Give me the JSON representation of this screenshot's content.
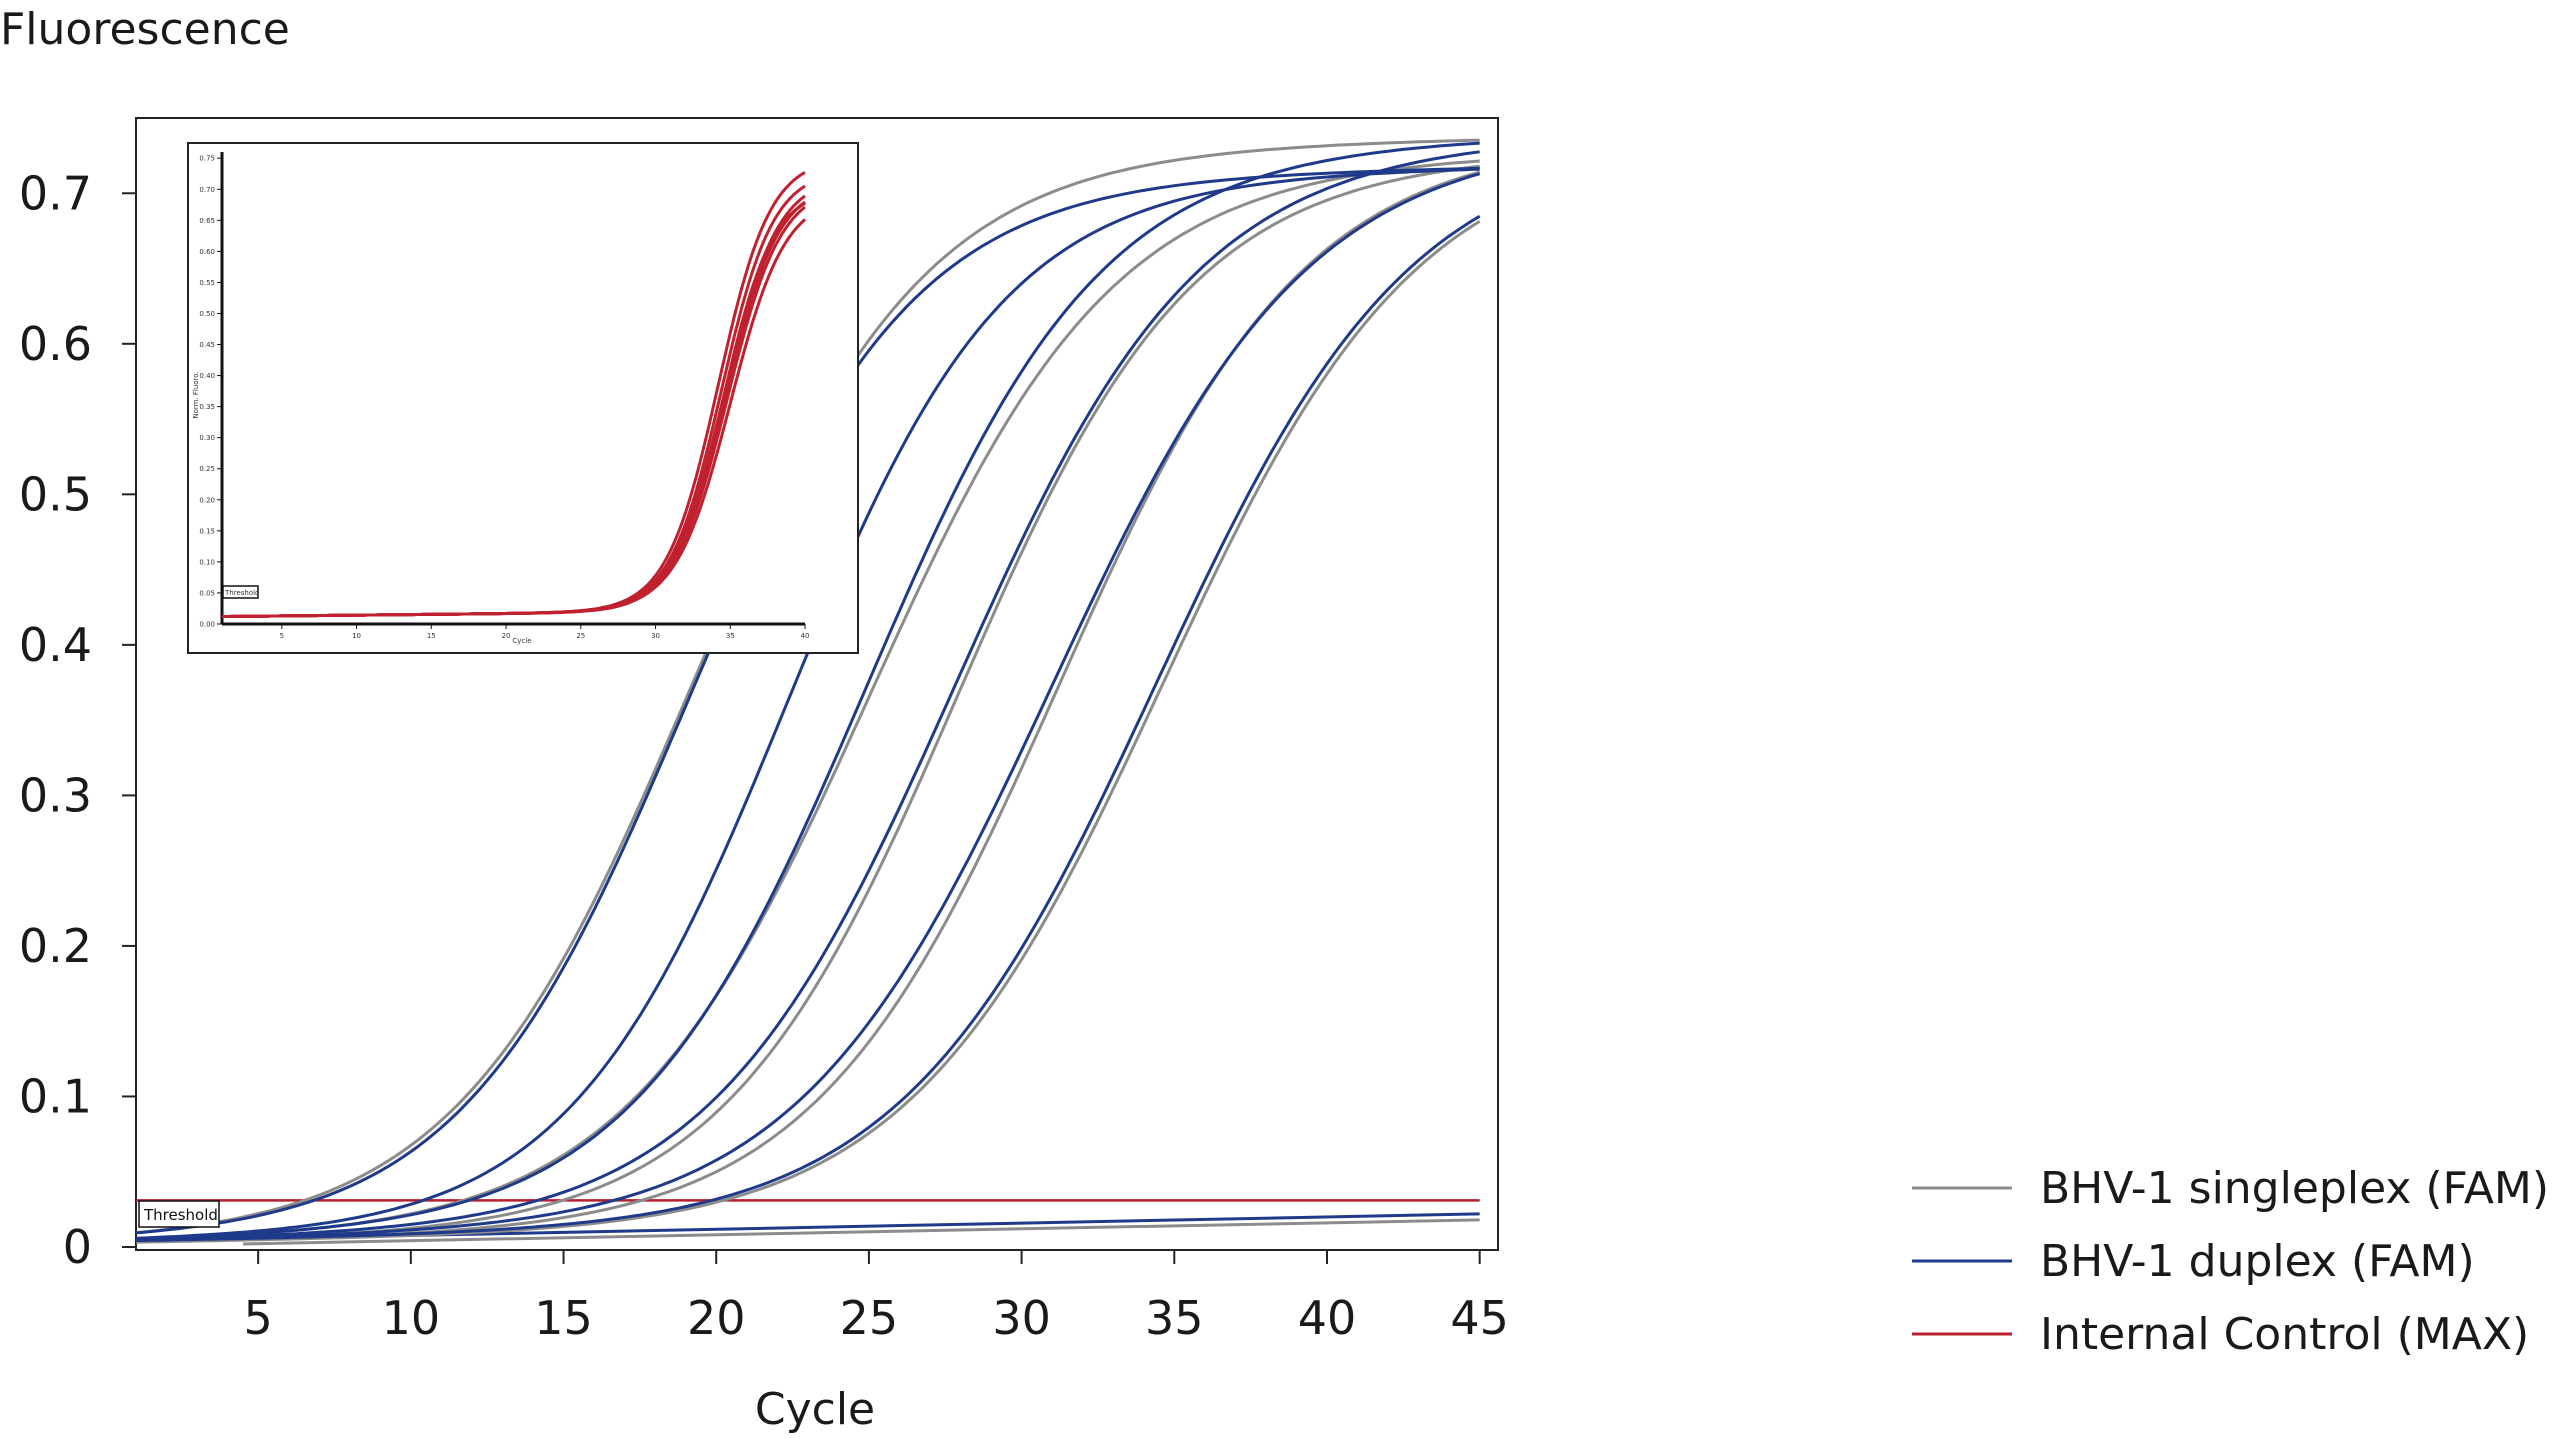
{
  "chart_data": [
    {
      "type": "line",
      "title": "",
      "ylabel": "Fluorescence",
      "xlabel": "Cycle",
      "xlim": [
        1,
        45.6
      ],
      "ylim": [
        -0.002,
        0.75
      ],
      "x_ticks": [
        5,
        10,
        15,
        20,
        25,
        30,
        35,
        40,
        45
      ],
      "y_ticks": [
        0,
        0.1,
        0.2,
        0.3,
        0.4,
        0.5,
        0.6,
        0.7
      ],
      "y_tick_labels": [
        "0",
        "0.1",
        "0.2",
        "0.3",
        "0.4",
        "0.5",
        "0.6",
        "0.7"
      ],
      "grid": false,
      "threshold": {
        "label": "Threshold",
        "value": 0.031,
        "color": "#b51f2e"
      },
      "legend": {
        "placement": "bottom-right-outside",
        "entries": [
          {
            "label": "BHV-1 singleplex (FAM)",
            "color": "#8c8c8c"
          },
          {
            "label": "BHV-1 duplex (FAM)",
            "color": "#1f3a8a"
          },
          {
            "label": "Internal Control (MAX)",
            "color": "#b51f2e"
          }
        ]
      },
      "series": [
        {
          "group": "singleplex",
          "color": "#8c8c8c",
          "ct": 19.1,
          "plateau": 0.72,
          "slope": 0.26,
          "base": 0.003
        },
        {
          "group": "singleplex",
          "color": "#8c8c8c",
          "ct": 25.0,
          "plateau": 0.71,
          "slope": 0.25,
          "base": 0.003
        },
        {
          "group": "singleplex",
          "color": "#8c8c8c",
          "ct": 27.9,
          "plateau": 0.71,
          "slope": 0.26,
          "base": 0.003
        },
        {
          "group": "singleplex",
          "color": "#8c8c8c",
          "ct": 31.2,
          "plateau": 0.72,
          "slope": 0.25,
          "base": 0.003
        },
        {
          "group": "singleplex",
          "color": "#8c8c8c",
          "ct": 34.6,
          "plateau": 0.72,
          "slope": 0.24,
          "base": 0.003
        },
        {
          "group": "duplex",
          "color": "#1f3a8a",
          "ct": 19.0,
          "plateau": 0.7,
          "slope": 0.27,
          "base": 0.004
        },
        {
          "group": "duplex",
          "color": "#1f3a8a",
          "ct": 22.3,
          "plateau": 0.7,
          "slope": 0.28,
          "base": 0.004
        },
        {
          "group": "duplex",
          "color": "#1f3a8a",
          "ct": 24.9,
          "plateau": 0.72,
          "slope": 0.26,
          "base": 0.004
        },
        {
          "group": "duplex",
          "color": "#1f3a8a",
          "ct": 27.8,
          "plateau": 0.72,
          "slope": 0.25,
          "base": 0.004
        },
        {
          "group": "duplex",
          "color": "#1f3a8a",
          "ct": 31.0,
          "plateau": 0.72,
          "slope": 0.24,
          "base": 0.004
        },
        {
          "group": "duplex",
          "color": "#1f3a8a",
          "ct": 34.4,
          "plateau": 0.72,
          "slope": 0.24,
          "base": 0.004
        }
      ],
      "baselines": [
        {
          "color": "#1f3a8a",
          "x": [
            1,
            45
          ],
          "y": [
            0.004,
            0.022
          ]
        },
        {
          "color": "#8c8c8c",
          "x": [
            4.5,
            45
          ],
          "y": [
            0.002,
            0.018
          ]
        }
      ]
    },
    {
      "type": "line",
      "title": "",
      "ylabel": "Norm. Fluoro.",
      "xlabel": "Cycle",
      "xlim": [
        1,
        41
      ],
      "ylim": [
        0,
        0.76
      ],
      "x_ticks": [
        5,
        10,
        15,
        20,
        25,
        30,
        35,
        40
      ],
      "y_ticks": [
        0,
        0.05,
        0.1,
        0.15,
        0.2,
        0.25,
        0.3,
        0.35,
        0.4,
        0.45,
        0.5,
        0.55,
        0.6,
        0.65,
        0.7,
        0.75
      ],
      "y_tick_labels": [
        "0.00",
        "0.05",
        "0.10",
        "0.15",
        "0.20",
        "0.25",
        "0.30",
        "0.35",
        "0.40",
        "0.45",
        "0.50",
        "0.55",
        "0.60",
        "0.65",
        "0.70",
        "0.75"
      ],
      "threshold": {
        "label": "Threshold"
      },
      "series": [
        {
          "color": "#c0212f",
          "mid": 34.2,
          "plateau": 0.73,
          "k": 0.58,
          "base": 0.012
        },
        {
          "color": "#c0212f",
          "mid": 34.4,
          "plateau": 0.71,
          "k": 0.58,
          "base": 0.012
        },
        {
          "color": "#c0212f",
          "mid": 34.6,
          "plateau": 0.7,
          "k": 0.56,
          "base": 0.012
        },
        {
          "color": "#c0212f",
          "mid": 34.7,
          "plateau": 0.69,
          "k": 0.57,
          "base": 0.012
        },
        {
          "color": "#c0212f",
          "mid": 34.8,
          "plateau": 0.685,
          "k": 0.56,
          "base": 0.012
        },
        {
          "color": "#c0212f",
          "mid": 34.5,
          "plateau": 0.68,
          "k": 0.6,
          "base": 0.012
        },
        {
          "color": "#c0212f",
          "mid": 35.0,
          "plateau": 0.67,
          "k": 0.55,
          "base": 0.012
        }
      ]
    }
  ]
}
